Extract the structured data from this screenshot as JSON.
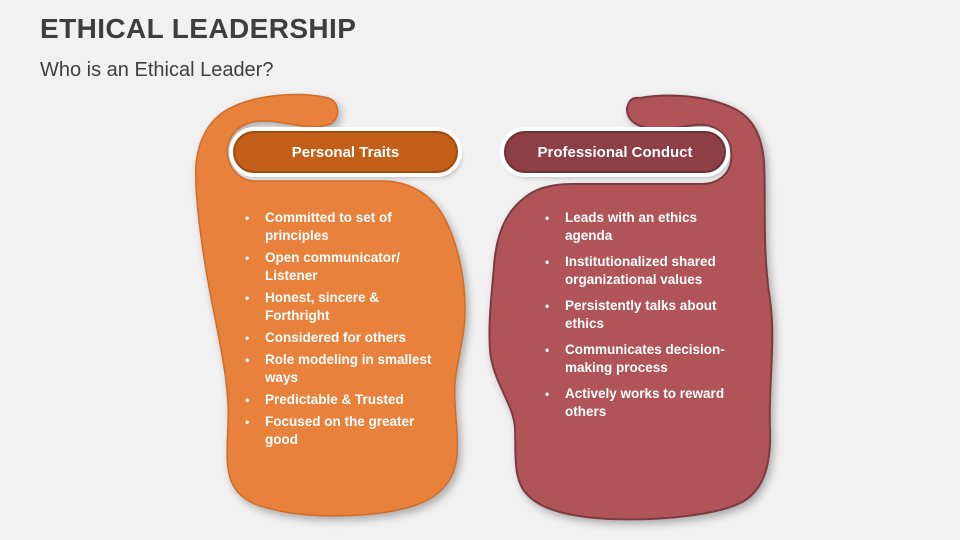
{
  "slide": {
    "title": "ETHICAL LEADERSHIP",
    "subtitle": "Who is an Ethical Leader?"
  },
  "bullet_glyph": "•",
  "columns": [
    {
      "header": "Personal Traits",
      "items": [
        "Committed to set of principles",
        "Open communicator/ Listener",
        "Honest, sincere & Forthright",
        "Considered for others",
        "Role modeling in smallest ways",
        "Predictable & Trusted",
        "Focused on the greater good"
      ]
    },
    {
      "header": "Professional Conduct",
      "items": [
        "Leads with an ethics agenda",
        "Institutionalized shared organizational values",
        "Persistently talks about ethics",
        "Communicates decision-making process",
        "Actively works to reward others"
      ]
    }
  ],
  "colors": {
    "background": "#f1f1f1",
    "title_text": "#3e3e3e",
    "orange_blob": "#e8813b",
    "orange_blob_stroke": "#d16c27",
    "orange_pill": "#c25e18",
    "orange_pill_border": "#9e4b10",
    "maroon_blob": "#b15459",
    "maroon_blob_stroke": "#7c3a41",
    "maroon_pill": "#8d3f45",
    "maroon_pill_border": "#6f3138",
    "list_text": "#ffffff"
  }
}
